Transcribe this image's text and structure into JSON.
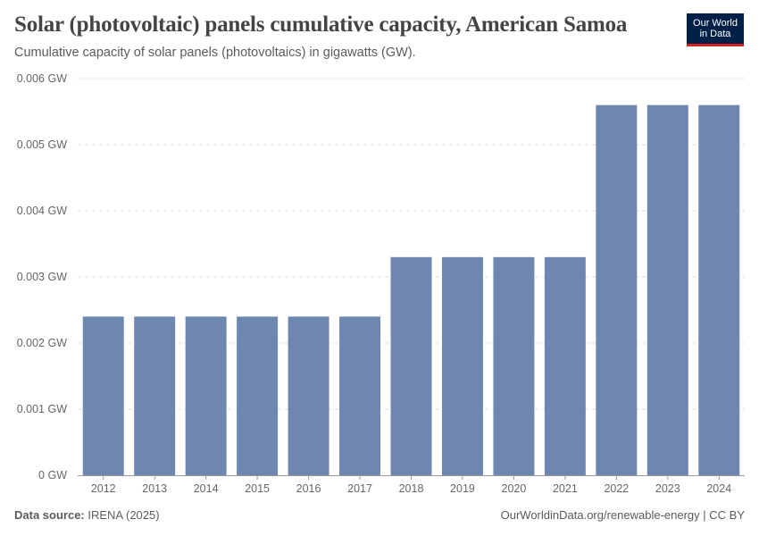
{
  "header": {
    "title": "Solar (photovoltaic) panels cumulative capacity, American Samoa",
    "subtitle": "Cumulative capacity of solar panels (photovoltaics) in gigawatts (GW).",
    "logo_line1": "Our World",
    "logo_line2": "in Data"
  },
  "footer": {
    "source_label": "Data source:",
    "source_value": "IRENA (2025)",
    "credit": "OurWorldinData.org/renewable-energy | CC BY"
  },
  "colors": {
    "bar": "#6d87b0",
    "grid": "#dddddd",
    "axis": "#999999"
  },
  "chart_data": {
    "type": "bar",
    "title": "Solar (photovoltaic) panels cumulative capacity, American Samoa",
    "xlabel": "",
    "ylabel": "",
    "unit": "GW",
    "ylim": [
      0,
      0.006
    ],
    "yticks": [
      0,
      0.001,
      0.002,
      0.003,
      0.004,
      0.005,
      0.006
    ],
    "ytick_labels": [
      "0 GW",
      "0.001 GW",
      "0.002 GW",
      "0.003 GW",
      "0.004 GW",
      "0.005 GW",
      "0.006 GW"
    ],
    "categories": [
      "2012",
      "2013",
      "2014",
      "2015",
      "2016",
      "2017",
      "2018",
      "2019",
      "2020",
      "2021",
      "2022",
      "2023",
      "2024"
    ],
    "values": [
      0.0024,
      0.0024,
      0.0024,
      0.0024,
      0.0024,
      0.0024,
      0.0033,
      0.0033,
      0.0033,
      0.0033,
      0.0056,
      0.0056,
      0.0056
    ],
    "grid": true
  }
}
